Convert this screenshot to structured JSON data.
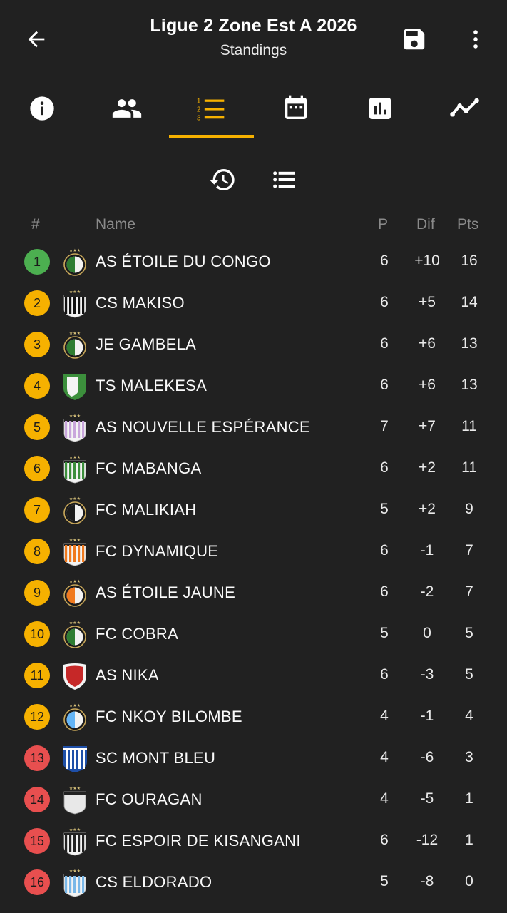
{
  "header": {
    "title": "Ligue 2 Zone Est A 2026",
    "subtitle": "Standings"
  },
  "tabs": [
    {
      "icon": "info-icon"
    },
    {
      "icon": "people-icon"
    },
    {
      "icon": "ranked-list-icon",
      "active": true
    },
    {
      "icon": "calendar-icon"
    },
    {
      "icon": "bar-chart-icon"
    },
    {
      "icon": "trend-line-icon"
    }
  ],
  "colors": {
    "background": "#212121",
    "accent": "#f6b100",
    "promotion": "#4caf50",
    "relegation": "#e84f4f"
  },
  "table": {
    "headers": {
      "rank": "#",
      "name": "Name",
      "played": "P",
      "diff": "Dif",
      "points": "Pts"
    },
    "rows": [
      {
        "rank": "1",
        "zone": "promotion",
        "name": "AS ÉTOILE DU CONGO",
        "played": "6",
        "diff": "+10",
        "points": "16",
        "crest": "ring",
        "crestColor": "#2e7d32"
      },
      {
        "rank": "2",
        "zone": "playoff",
        "name": "CS MAKISO",
        "played": "6",
        "diff": "+5",
        "points": "14",
        "crest": "stripes",
        "crestColor": "#111111"
      },
      {
        "rank": "3",
        "zone": "playoff",
        "name": "JE GAMBELA",
        "played": "6",
        "diff": "+6",
        "points": "13",
        "crest": "ring",
        "crestColor": "#2e7d32"
      },
      {
        "rank": "4",
        "zone": "playoff",
        "name": "TS MALEKESA",
        "played": "6",
        "diff": "+6",
        "points": "13",
        "crest": "shield-green",
        "crestColor": "#3c8f3c"
      },
      {
        "rank": "5",
        "zone": "playoff",
        "name": "AS NOUVELLE ESPÉRANCE",
        "played": "7",
        "diff": "+7",
        "points": "11",
        "crest": "stripes",
        "crestColor": "#c9a6dc"
      },
      {
        "rank": "6",
        "zone": "playoff",
        "name": "FC MABANGA",
        "played": "6",
        "diff": "+2",
        "points": "11",
        "crest": "stripes",
        "crestColor": "#3c8f3c"
      },
      {
        "rank": "7",
        "zone": "playoff",
        "name": "FC MALIKIAH",
        "played": "5",
        "diff": "+2",
        "points": "9",
        "crest": "ring",
        "crestColor": "#1c1c1c"
      },
      {
        "rank": "8",
        "zone": "playoff",
        "name": "FC DYNAMIQUE",
        "played": "6",
        "diff": "-1",
        "points": "7",
        "crest": "stripes",
        "crestColor": "#f07a1f"
      },
      {
        "rank": "9",
        "zone": "playoff",
        "name": "AS ÉTOILE JAUNE",
        "played": "6",
        "diff": "-2",
        "points": "7",
        "crest": "ring",
        "crestColor": "#f07a1f"
      },
      {
        "rank": "10",
        "zone": "playoff",
        "name": "FC COBRA",
        "played": "5",
        "diff": "0",
        "points": "5",
        "crest": "ring",
        "crestColor": "#2e7d32"
      },
      {
        "rank": "11",
        "zone": "playoff",
        "name": "AS NIKA",
        "played": "6",
        "diff": "-3",
        "points": "5",
        "crest": "shield-red",
        "crestColor": "#c62828"
      },
      {
        "rank": "12",
        "zone": "playoff",
        "name": "FC NKOY BILOMBE",
        "played": "4",
        "diff": "-1",
        "points": "4",
        "crest": "ring",
        "crestColor": "#64b5f6"
      },
      {
        "rank": "13",
        "zone": "relegation",
        "name": "SC MONT BLEU",
        "played": "4",
        "diff": "-6",
        "points": "3",
        "crest": "shield-blue",
        "crestColor": "#1e4fa8"
      },
      {
        "rank": "14",
        "zone": "relegation",
        "name": "FC OURAGAN",
        "played": "4",
        "diff": "-5",
        "points": "1",
        "crest": "plain",
        "crestColor": "#e8e8e8"
      },
      {
        "rank": "15",
        "zone": "relegation",
        "name": "FC ESPOIR DE KISANGANI",
        "played": "6",
        "diff": "-12",
        "points": "1",
        "crest": "stripes",
        "crestColor": "#222222"
      },
      {
        "rank": "16",
        "zone": "relegation",
        "name": "CS ELDORADO",
        "played": "5",
        "diff": "-8",
        "points": "0",
        "crest": "stripes",
        "crestColor": "#7ab8e8"
      }
    ]
  }
}
